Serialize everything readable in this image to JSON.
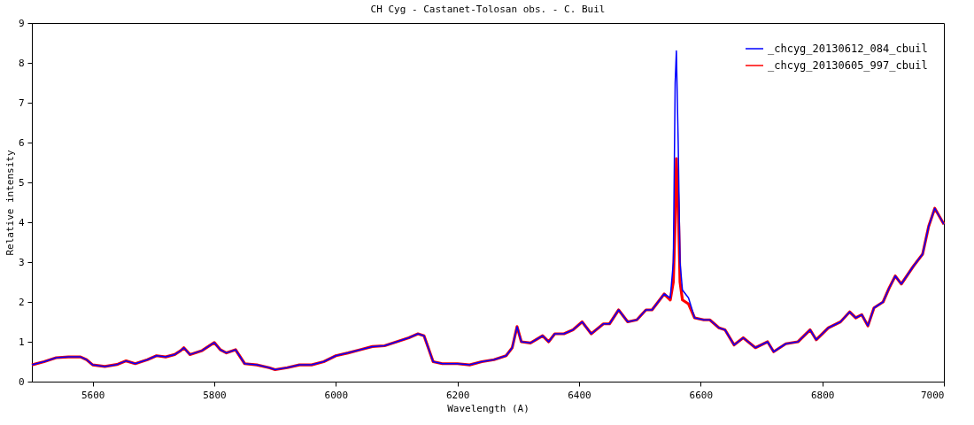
{
  "chart_data": {
    "type": "line",
    "title": "CH Cyg - Castanet-Tolosan obs. - C. Buil",
    "xlabel": "Wavelength (A)",
    "ylabel": "Relative intensity",
    "x": [
      5500,
      5520,
      5540,
      5560,
      5580,
      5590,
      5600,
      5620,
      5640,
      5655,
      5670,
      5690,
      5705,
      5720,
      5735,
      5745,
      5750,
      5760,
      5780,
      5800,
      5810,
      5820,
      5835,
      5850,
      5870,
      5890,
      5900,
      5920,
      5940,
      5960,
      5980,
      6000,
      6020,
      6040,
      6060,
      6080,
      6100,
      6120,
      6135,
      6145,
      6160,
      6175,
      6200,
      6220,
      6240,
      6260,
      6280,
      6290,
      6298,
      6305,
      6320,
      6340,
      6350,
      6360,
      6375,
      6390,
      6405,
      6420,
      6440,
      6450,
      6465,
      6480,
      6495,
      6510,
      6520,
      6530,
      6540,
      6550,
      6555,
      6558,
      6560,
      6563,
      6566,
      6570,
      6580,
      6590,
      6605,
      6615,
      6630,
      6640,
      6655,
      6670,
      6690,
      6710,
      6720,
      6740,
      6760,
      6780,
      6790,
      6810,
      6830,
      6845,
      6855,
      6865,
      6875,
      6885,
      6900,
      6910,
      6920,
      6930,
      6950,
      6965,
      6975,
      6985,
      7000
    ],
    "series": [
      {
        "name": "_chcyg_20130612_084_cbuil",
        "color": "#0000ff",
        "values": [
          0.42,
          0.5,
          0.6,
          0.62,
          0.62,
          0.55,
          0.42,
          0.38,
          0.43,
          0.52,
          0.45,
          0.55,
          0.65,
          0.62,
          0.68,
          0.78,
          0.85,
          0.68,
          0.78,
          0.98,
          0.8,
          0.72,
          0.8,
          0.45,
          0.42,
          0.35,
          0.3,
          0.35,
          0.42,
          0.42,
          0.5,
          0.65,
          0.72,
          0.8,
          0.88,
          0.9,
          1.0,
          1.1,
          1.2,
          1.15,
          0.5,
          0.45,
          0.45,
          0.42,
          0.5,
          0.55,
          0.65,
          0.85,
          1.38,
          1.0,
          0.97,
          1.15,
          1.0,
          1.2,
          1.2,
          1.3,
          1.5,
          1.2,
          1.45,
          1.45,
          1.8,
          1.5,
          1.55,
          1.8,
          1.8,
          2.0,
          2.2,
          2.1,
          3.0,
          7.5,
          8.3,
          6.0,
          3.0,
          2.3,
          2.1,
          1.6,
          1.55,
          1.55,
          1.35,
          1.3,
          0.92,
          1.1,
          0.85,
          1.0,
          0.75,
          0.95,
          1.0,
          1.3,
          1.05,
          1.35,
          1.5,
          1.75,
          1.6,
          1.68,
          1.4,
          1.85,
          2.0,
          2.35,
          2.65,
          2.45,
          2.9,
          3.2,
          3.9,
          4.35,
          3.95
        ]
      },
      {
        "name": "_chcyg_20130605_997_cbuil",
        "color": "#ff0000",
        "values": [
          0.42,
          0.5,
          0.6,
          0.62,
          0.62,
          0.55,
          0.42,
          0.38,
          0.43,
          0.52,
          0.45,
          0.55,
          0.65,
          0.62,
          0.68,
          0.78,
          0.85,
          0.68,
          0.78,
          0.98,
          0.8,
          0.72,
          0.8,
          0.45,
          0.42,
          0.35,
          0.3,
          0.35,
          0.42,
          0.42,
          0.5,
          0.65,
          0.72,
          0.8,
          0.88,
          0.9,
          1.0,
          1.1,
          1.2,
          1.15,
          0.5,
          0.45,
          0.45,
          0.42,
          0.5,
          0.55,
          0.65,
          0.85,
          1.38,
          1.0,
          0.97,
          1.15,
          1.0,
          1.2,
          1.2,
          1.3,
          1.5,
          1.2,
          1.45,
          1.45,
          1.8,
          1.5,
          1.55,
          1.8,
          1.8,
          2.0,
          2.2,
          2.05,
          2.5,
          4.0,
          5.6,
          4.5,
          2.5,
          2.05,
          1.95,
          1.6,
          1.55,
          1.55,
          1.35,
          1.3,
          0.92,
          1.1,
          0.85,
          1.0,
          0.75,
          0.95,
          1.0,
          1.3,
          1.05,
          1.35,
          1.5,
          1.75,
          1.6,
          1.68,
          1.4,
          1.85,
          2.0,
          2.35,
          2.65,
          2.45,
          2.9,
          3.2,
          3.9,
          4.35,
          3.95
        ]
      }
    ],
    "xlim": [
      5500,
      7000
    ],
    "xticks": [
      5600,
      5800,
      6000,
      6200,
      6400,
      6600,
      6800,
      7000
    ],
    "ylim": [
      0,
      9
    ],
    "yticks": [
      0,
      1,
      2,
      3,
      4,
      5,
      6,
      7,
      8,
      9
    ],
    "grid": false,
    "legend": "top right",
    "line_style": "solid",
    "marker": "none"
  }
}
